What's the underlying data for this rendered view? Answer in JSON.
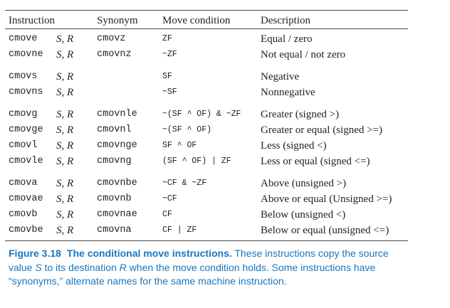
{
  "colors": {
    "text": "#231f20",
    "caption": "#1b75bc",
    "rule": "#4a4a4a"
  },
  "table": {
    "headers": {
      "instruction": "Instruction",
      "synonym": "Synonym",
      "condition": "Move condition",
      "description": "Description"
    },
    "groups": [
      [
        {
          "instruction": "cmove",
          "operands": "S, R",
          "synonym": "cmovz",
          "condition": "ZF",
          "description": "Equal / zero"
        },
        {
          "instruction": "cmovne",
          "operands": "S, R",
          "synonym": "cmovnz",
          "condition": "~ZF",
          "description": "Not equal / not zero"
        }
      ],
      [
        {
          "instruction": "cmovs",
          "operands": "S, R",
          "condition": "SF",
          "description": "Negative"
        },
        {
          "instruction": "cmovns",
          "operands": "S, R",
          "condition": "~SF",
          "description": "Nonnegative"
        }
      ],
      [
        {
          "instruction": "cmovg",
          "operands": "S, R",
          "synonym": "cmovnle",
          "condition": "~(SF ^ OF) & ~ZF",
          "description": "Greater (signed >)"
        },
        {
          "instruction": "cmovge",
          "operands": "S, R",
          "synonym": "cmovnl",
          "condition": "~(SF ^ OF)",
          "description": "Greater or equal (signed >=)"
        },
        {
          "instruction": "cmovl",
          "operands": "S, R",
          "synonym": "cmovnge",
          "condition": "SF ^ OF",
          "description": "Less (signed <)"
        },
        {
          "instruction": "cmovle",
          "operands": "S, R",
          "synonym": "cmovng",
          "condition": "(SF ^ OF) | ZF",
          "description": "Less or equal (signed <=)"
        }
      ],
      [
        {
          "instruction": "cmova",
          "operands": "S, R",
          "synonym": "cmovnbe",
          "condition": "~CF & ~ZF",
          "description": "Above (unsigned >)"
        },
        {
          "instruction": "cmovae",
          "operands": "S, R",
          "synonym": "cmovnb",
          "condition": "~CF",
          "description": "Above or equal (Unsigned >=)"
        },
        {
          "instruction": "cmovb",
          "operands": "S, R",
          "synonym": "cmovnae",
          "condition": "CF",
          "description": "Below (unsigned <)"
        },
        {
          "instruction": "cmovbe",
          "operands": "S, R",
          "synonym": "cmovna",
          "condition": "CF | ZF",
          "description": "Below or equal (unsigned <=)"
        }
      ]
    ]
  },
  "caption": {
    "label": "Figure 3.18",
    "title": "The conditional move instructions.",
    "line1_rest": " These instructions copy the source",
    "line2_a": "value ",
    "var_s": "S",
    "line2_b": " to its destination ",
    "var_r": "R",
    "line2_c": " when the move condition holds. Some instructions have",
    "line3": "“synonyms,” alternate names for the same machine instruction."
  }
}
